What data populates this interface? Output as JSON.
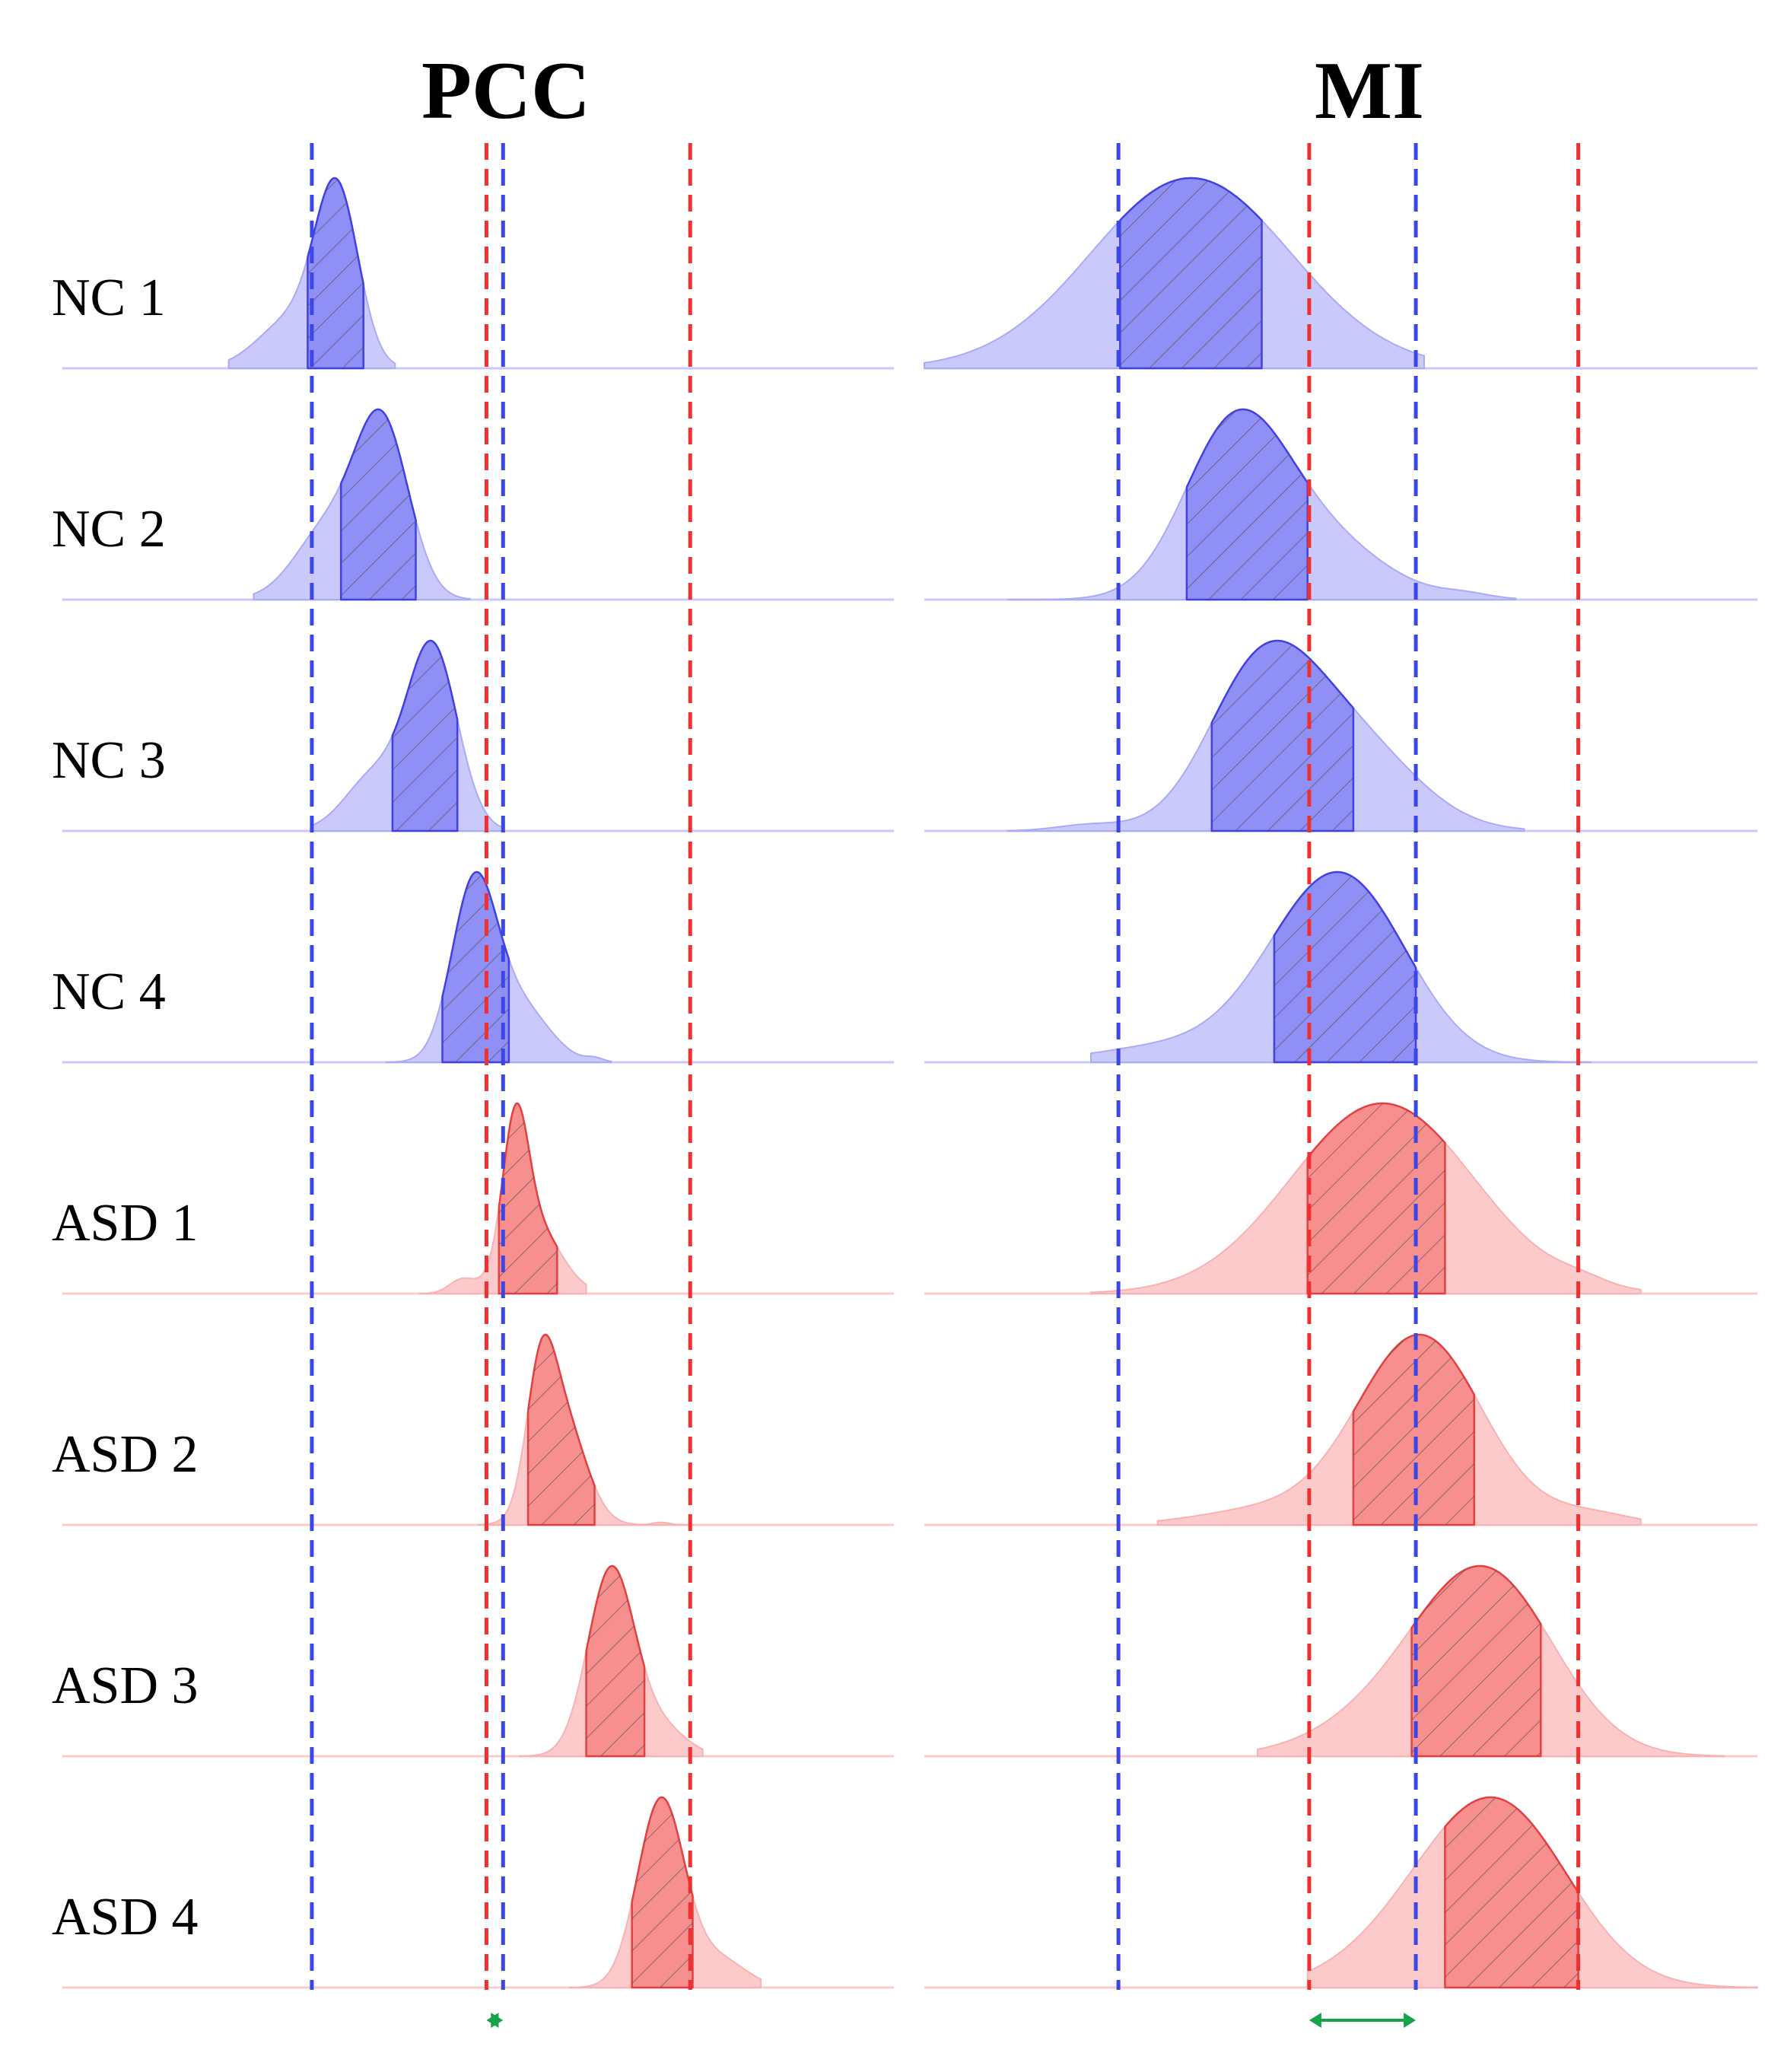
{
  "chart_data": [
    {
      "type": "ridgeline",
      "title": "PCC",
      "rows": [
        "NC 1",
        "NC 2",
        "NC 3",
        "NC 4",
        "ASD 1",
        "ASD 2",
        "ASD 3",
        "ASD 4"
      ],
      "x_range": [
        0,
        100
      ],
      "series": [
        {
          "group": "NC",
          "peaks": [
            [
              33,
              2.6,
              1.0
            ],
            [
              27.5,
              4.0,
              0.28
            ]
          ],
          "support": [
            20,
            40
          ],
          "iqr": [
            29.5,
            36.2
          ]
        },
        {
          "group": "NC",
          "peaks": [
            [
              38.5,
              3.2,
              1.0
            ],
            [
              32,
              4.0,
              0.42
            ]
          ],
          "support": [
            23,
            49
          ],
          "iqr": [
            33.5,
            42.5
          ]
        },
        {
          "group": "NC",
          "peaks": [
            [
              44.5,
              3.0,
              1.0
            ],
            [
              37.5,
              3.5,
              0.3
            ]
          ],
          "support": [
            30,
            53
          ],
          "iqr": [
            39.7,
            47.5
          ]
        },
        {
          "group": "NC",
          "peaks": [
            [
              49.5,
              2.7,
              1.0
            ],
            [
              55,
              3.5,
              0.32
            ],
            [
              64,
              1.0,
              0.02
            ]
          ],
          "support": [
            39,
            66
          ],
          "iqr": [
            45.7,
            53.7
          ]
        },
        {
          "group": "ASD",
          "peaks": [
            [
              54.5,
              1.5,
              1.0
            ],
            [
              56.5,
              3.2,
              0.55
            ],
            [
              48,
              1.5,
              0.1
            ]
          ],
          "support": [
            43,
            63
          ],
          "iqr": [
            52.5,
            59.5
          ]
        },
        {
          "group": "ASD",
          "peaks": [
            [
              57.5,
              1.7,
              0.9
            ],
            [
              60,
              2.8,
              0.9
            ],
            [
              72,
              1.0,
              0.02
            ]
          ],
          "support": [
            50,
            76
          ],
          "iqr": [
            56,
            64
          ]
        },
        {
          "group": "ASD",
          "peaks": [
            [
              66,
              2.8,
              1.0
            ],
            [
              72,
              3.0,
              0.15
            ]
          ],
          "support": [
            55,
            77
          ],
          "iqr": [
            63,
            70
          ]
        },
        {
          "group": "ASD",
          "peaks": [
            [
              72,
              2.8,
              1.0
            ],
            [
              79,
              3.2,
              0.15
            ]
          ],
          "support": [
            61,
            84
          ],
          "iqr": [
            68.5,
            75.8
          ]
        }
      ],
      "nc_bounds": [
        30,
        53
      ],
      "asd_bounds": [
        51,
        75.5
      ]
    },
    {
      "type": "ridgeline",
      "title": "MI",
      "rows": [
        "NC 1",
        "NC 2",
        "NC 3",
        "NC 4",
        "ASD 1",
        "ASD 2",
        "ASD 3",
        "ASD 4"
      ],
      "x_range": [
        0,
        100
      ],
      "series": [
        {
          "group": "NC",
          "peaks": [
            [
              32,
              12.0,
              1.0
            ]
          ],
          "support": [
            0,
            60
          ],
          "iqr": [
            23.5,
            40.5
          ]
        },
        {
          "group": "NC",
          "peaks": [
            [
              37,
              6.0,
              1.0
            ],
            [
              46,
              8.0,
              0.45
            ],
            [
              65,
              3.0,
              0.03
            ]
          ],
          "support": [
            10,
            71
          ],
          "iqr": [
            31.5,
            46
          ]
        },
        {
          "group": "NC",
          "peaks": [
            [
              40.5,
              6.5,
              1.0
            ],
            [
              51.5,
              7.5,
              0.55
            ],
            [
              20,
              4.0,
              0.04
            ]
          ],
          "support": [
            10,
            72
          ],
          "iqr": [
            34.5,
            51.5
          ]
        },
        {
          "group": "NC",
          "peaks": [
            [
              48,
              8.0,
              1.0
            ],
            [
              53,
              7.0,
              0.4
            ],
            [
              28,
              8.0,
              0.1
            ]
          ],
          "support": [
            20,
            80
          ],
          "iqr": [
            42,
            59
          ]
        },
        {
          "group": "ASD",
          "peaks": [
            [
              55,
              11.0,
              1.0
            ],
            [
              79,
              3.0,
              0.03
            ]
          ],
          "support": [
            20,
            86
          ],
          "iqr": [
            46,
            62.5
          ]
        },
        {
          "group": "ASD",
          "peaks": [
            [
              59.5,
              7.5,
              1.0
            ],
            [
              41,
              8.0,
              0.08
            ],
            [
              80,
              5.0,
              0.06
            ]
          ],
          "support": [
            28,
            86
          ],
          "iqr": [
            51.5,
            66
          ]
        },
        {
          "group": "ASD",
          "peaks": [
            [
              68,
              8.0,
              1.0
            ],
            [
              58,
              9.0,
              0.3
            ]
          ],
          "support": [
            40,
            96
          ],
          "iqr": [
            58.5,
            74
          ]
        },
        {
          "group": "ASD",
          "peaks": [
            [
              69,
              8.5,
              1.0
            ],
            [
              58,
              8.0,
              0.2
            ]
          ],
          "support": [
            46,
            100
          ],
          "iqr": [
            62.5,
            78.5
          ]
        }
      ],
      "nc_bounds": [
        23.3,
        59
      ],
      "asd_bounds": [
        46.2,
        78.5
      ]
    }
  ],
  "colors": {
    "nc_fill": "#c9c9fb",
    "nc_iqr": "#8f8ff5",
    "nc_edge": "#4040e6",
    "nc_line": "#3a46e8",
    "asd_fill": "#fccaca",
    "asd_iqr": "#f88f8f",
    "asd_edge": "#e34040",
    "asd_line": "#ee3030",
    "arrow": "#16a34a",
    "hatch": "#666666"
  }
}
